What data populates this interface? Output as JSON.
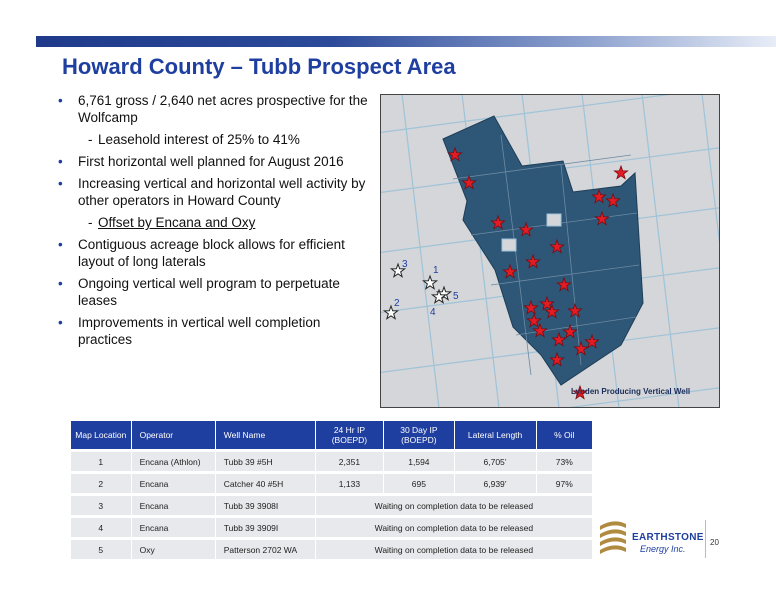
{
  "title": "Howard County – Tubb Prospect Area",
  "bullets": [
    {
      "text": "6,761 gross / 2,640 net acres prospective for the Wolfcamp"
    },
    {
      "sub": "Leasehold interest of 25% to 41%"
    },
    {
      "text": "First horizontal well planned for August 2016"
    },
    {
      "text": "Increasing vertical and horizontal well activity by other operators in Howard County"
    },
    {
      "sub": "Offset by Encana and Oxy"
    },
    {
      "text": "Contiguous acreage block allows for efficient layout of long laterals"
    },
    {
      "text": "Ongoing vertical well program to perpetuate leases"
    },
    {
      "text": "Improvements in vertical well completion practices"
    }
  ],
  "map": {
    "legend": "Lynden Producing Vertical Well",
    "well_labels": [
      "3",
      "1",
      "5",
      "2",
      "4"
    ],
    "colors": {
      "acreage": "#2e5676",
      "grid": "#9fc3d8",
      "background": "#d4d6d9",
      "star_fill": "#e31b23"
    }
  },
  "table": {
    "headers": [
      "Map Location",
      "Operator",
      "Well Name",
      "24 Hr IP (BOEPD)",
      "30 Day IP (BOEPD)",
      "Lateral Length",
      "% Oil"
    ],
    "rows": [
      [
        "1",
        "Encana (Athlon)",
        "Tubb 39 #5H",
        "2,351",
        "1,594",
        "6,705’",
        "73%"
      ],
      [
        "2",
        "Encana",
        "Catcher 40 #5H",
        "1,133",
        "695",
        "6,939’",
        "97%"
      ],
      [
        "3",
        "Encana",
        "Tubb 39 3908I",
        "Waiting on completion data to be released"
      ],
      [
        "4",
        "Encana",
        "Tubb 39 3909I",
        "Waiting on completion data to be released"
      ],
      [
        "5",
        "Oxy",
        "Patterson 2702 WA",
        "Waiting on completion data to be released"
      ]
    ]
  },
  "logo": {
    "name": "EARTHSTONE",
    "sub": "Energy Inc."
  },
  "page_number": "20"
}
